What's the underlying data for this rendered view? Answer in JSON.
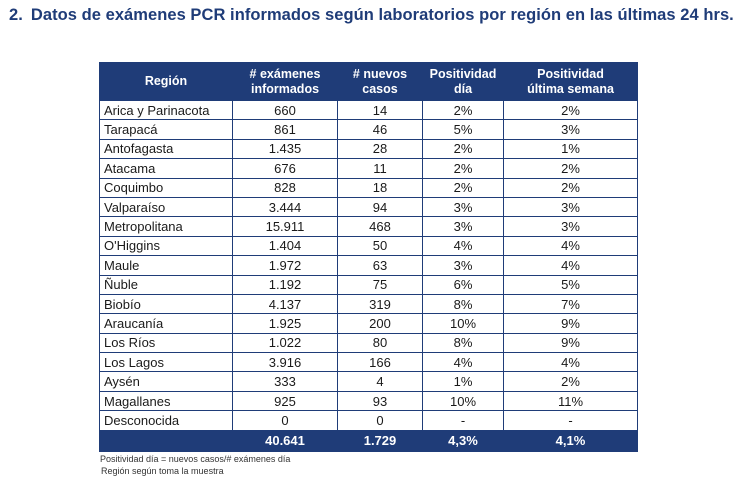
{
  "heading": {
    "number": "2.",
    "title": "Datos de exámenes PCR informados según laboratorios por región en las últimas 24 hrs."
  },
  "table": {
    "headers": [
      [
        "Región"
      ],
      [
        "# exámenes",
        "informados"
      ],
      [
        "# nuevos",
        "casos"
      ],
      [
        "Positividad",
        "día"
      ],
      [
        "Positividad",
        "última semana"
      ]
    ],
    "rows": [
      [
        "Arica y Parinacota",
        "660",
        "14",
        "2%",
        "2%"
      ],
      [
        "Tarapacá",
        "861",
        "46",
        "5%",
        "3%"
      ],
      [
        "Antofagasta",
        "1.435",
        "28",
        "2%",
        "1%"
      ],
      [
        "Atacama",
        "676",
        "11",
        "2%",
        "2%"
      ],
      [
        "Coquimbo",
        "828",
        "18",
        "2%",
        "2%"
      ],
      [
        "Valparaíso",
        "3.444",
        "94",
        "3%",
        "3%"
      ],
      [
        "Metropolitana",
        "15.911",
        "468",
        "3%",
        "3%"
      ],
      [
        "O'Higgins",
        "1.404",
        "50",
        "4%",
        "4%"
      ],
      [
        "Maule",
        "1.972",
        "63",
        "3%",
        "4%"
      ],
      [
        "Ñuble",
        "1.192",
        "75",
        "6%",
        "5%"
      ],
      [
        "Biobío",
        "4.137",
        "319",
        "8%",
        "7%"
      ],
      [
        "Araucanía",
        "1.925",
        "200",
        "10%",
        "9%"
      ],
      [
        "Los Ríos",
        "1.022",
        "80",
        "8%",
        "9%"
      ],
      [
        "Los Lagos",
        "3.916",
        "166",
        "4%",
        "4%"
      ],
      [
        "Aysén",
        "333",
        "4",
        "1%",
        "2%"
      ],
      [
        "Magallanes",
        "925",
        "93",
        "10%",
        "11%"
      ],
      [
        "Desconocida",
        "0",
        "0",
        "-",
        "-"
      ]
    ],
    "totals": [
      "",
      "40.641",
      "1.729",
      "4,3%",
      "4,1%"
    ]
  },
  "notes": [
    "Positividad día = nuevos casos/# exámenes día",
    "Región según toma la muestra"
  ],
  "colors": {
    "header_bg": "#1f3c78",
    "title": "#1f3c78"
  }
}
